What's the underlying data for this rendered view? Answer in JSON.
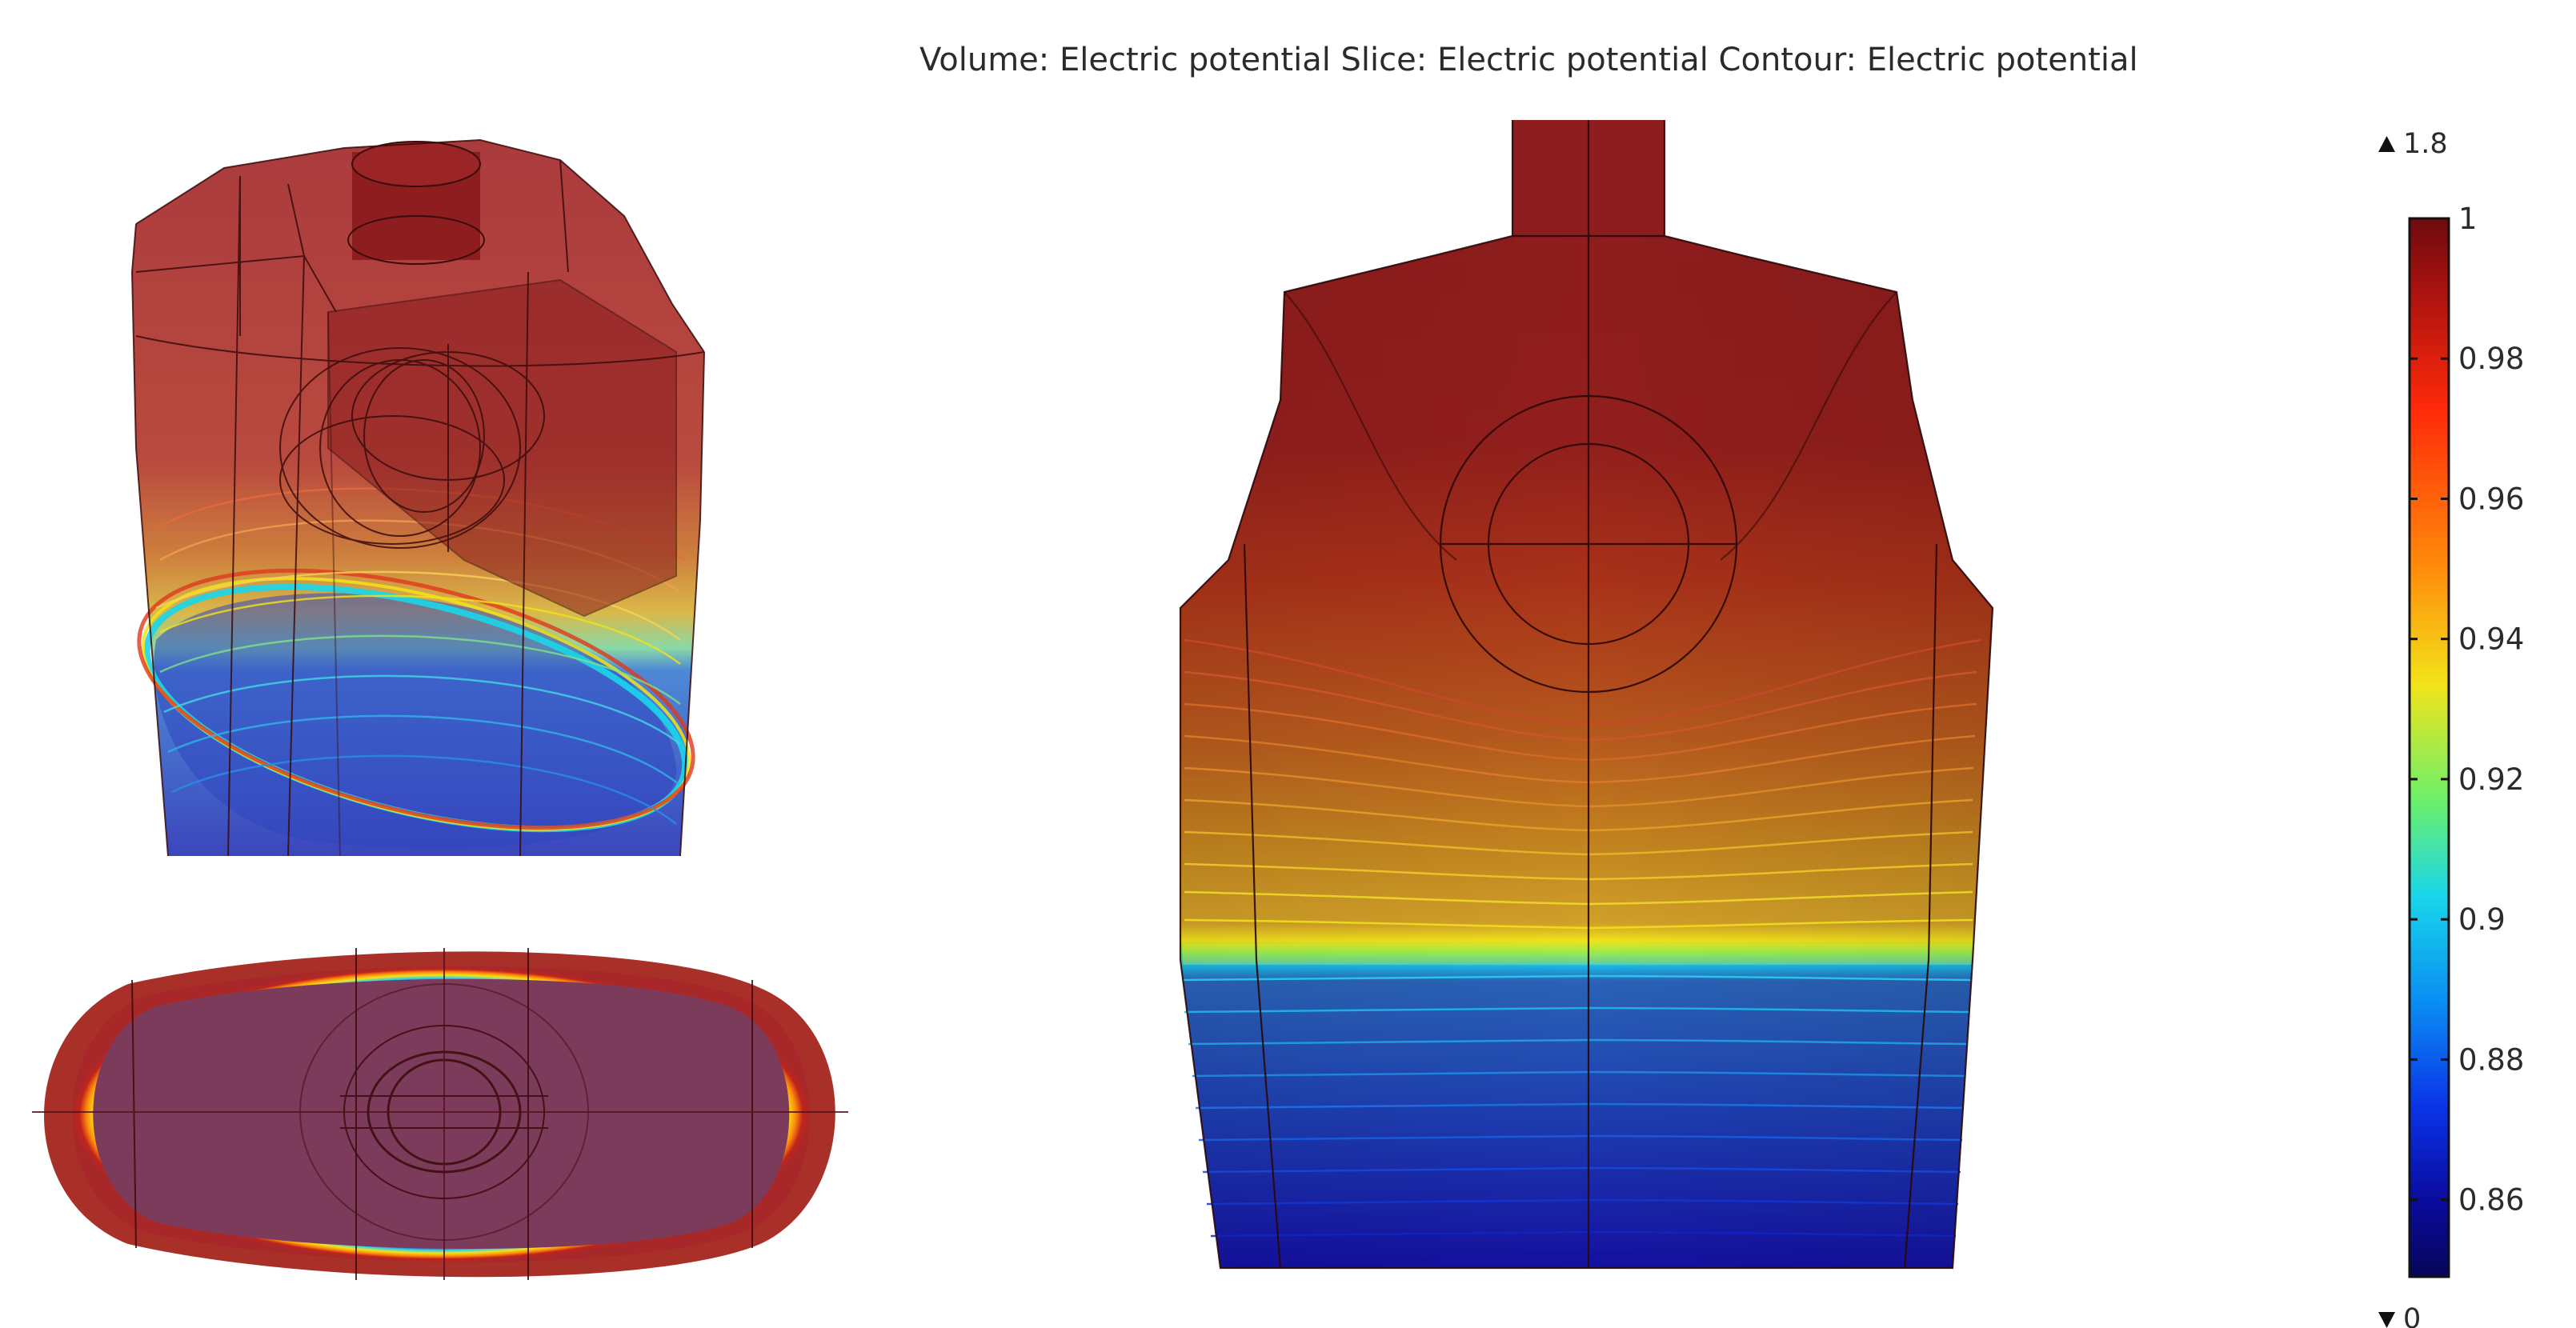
{
  "title": "Volume: Electric potential  Slice: Electric potential  Contour: Electric potential",
  "colorbar": {
    "max_marker": "1.8",
    "min_marker": "0",
    "ticks": [
      "1",
      "0.98",
      "0.96",
      "0.94",
      "0.92",
      "0.9",
      "0.88",
      "0.86"
    ],
    "range": [
      0.849,
      1.0
    ],
    "colormap": [
      "#7a0b10",
      "#c01a10",
      "#ff2a0a",
      "#ff8c0a",
      "#f2e31a",
      "#6cf06a",
      "#19d6ea",
      "#0a8ef2",
      "#0a33e8",
      "#0a0a9c",
      "#06065a"
    ]
  },
  "colors": {
    "body_red": "#8f1d1f",
    "body_red_dark": "#7a1517",
    "ellipse_fill": "#7d3b5c",
    "wire": "#3a0c0c",
    "contour_warm": "#e1b21e",
    "contour_cool": "#2ad2f0"
  },
  "views": {
    "iso_view": "isometric-3d",
    "top_view": "xy-plane",
    "front_view": "xz-plane"
  }
}
